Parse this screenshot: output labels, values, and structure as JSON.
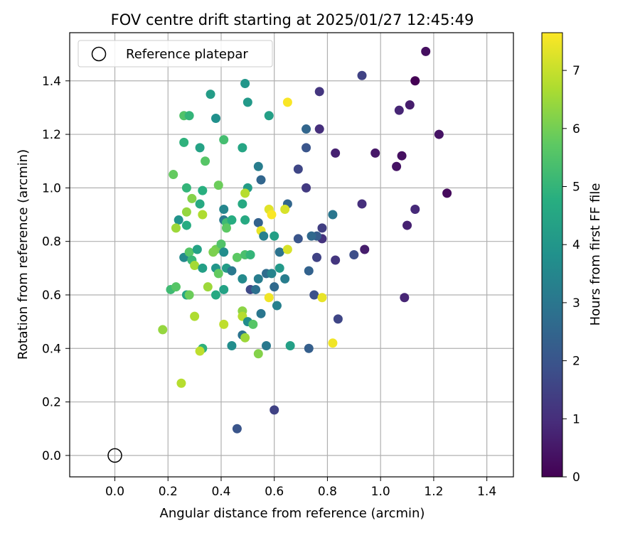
{
  "chart_data": {
    "type": "scatter",
    "title": "FOV centre drift starting at 2025/01/27 12:45:49",
    "xlabel": "Angular distance from reference (arcmin)",
    "ylabel": "Rotation from reference (arcmin)",
    "xlim": [
      -0.17,
      1.5
    ],
    "ylim": [
      -0.08,
      1.58
    ],
    "xticks": [
      0.0,
      0.2,
      0.4,
      0.6,
      0.8,
      1.0,
      1.2,
      1.4
    ],
    "xtick_labels": [
      "0.0",
      "0.2",
      "0.4",
      "0.6",
      "0.8",
      "1.0",
      "1.2",
      "1.4"
    ],
    "yticks": [
      0.0,
      0.2,
      0.4,
      0.6,
      0.8,
      1.0,
      1.2,
      1.4
    ],
    "ytick_labels": [
      "0.0",
      "0.2",
      "0.4",
      "0.6",
      "0.8",
      "1.0",
      "1.2",
      "1.4"
    ],
    "grid": true,
    "legend": {
      "placement": "top-left",
      "entries": [
        "Reference platepar"
      ]
    },
    "reference_point": {
      "x": 0.0,
      "y": 0.0,
      "style": "open-circle"
    },
    "colorbar": {
      "label": "Hours from first FF file",
      "colormap": "viridis",
      "range": [
        0,
        7.65
      ],
      "ticks": [
        0,
        1,
        2,
        3,
        4,
        5,
        6,
        7
      ],
      "tick_labels": [
        "0",
        "1",
        "2",
        "3",
        "4",
        "5",
        "6",
        "7"
      ]
    },
    "series": [
      {
        "color_by": "hours",
        "points": [
          {
            "x": 1.17,
            "y": 1.51,
            "c": 0.3
          },
          {
            "x": 0.93,
            "y": 1.42,
            "c": 1.5
          },
          {
            "x": 1.13,
            "y": 1.4,
            "c": 0.0
          },
          {
            "x": 0.77,
            "y": 1.36,
            "c": 1.2
          },
          {
            "x": 1.11,
            "y": 1.31,
            "c": 0.6
          },
          {
            "x": 1.07,
            "y": 1.29,
            "c": 0.8
          },
          {
            "x": 1.22,
            "y": 1.2,
            "c": 0.4
          },
          {
            "x": 0.77,
            "y": 1.22,
            "c": 1.0
          },
          {
            "x": 0.72,
            "y": 1.22,
            "c": 2.5
          },
          {
            "x": 0.72,
            "y": 1.15,
            "c": 2.0
          },
          {
            "x": 0.83,
            "y": 1.13,
            "c": 0.7
          },
          {
            "x": 0.98,
            "y": 1.13,
            "c": 0.5
          },
          {
            "x": 1.08,
            "y": 1.12,
            "c": 0.3
          },
          {
            "x": 1.06,
            "y": 1.08,
            "c": 0.4
          },
          {
            "x": 0.69,
            "y": 1.07,
            "c": 1.6
          },
          {
            "x": 0.72,
            "y": 1.0,
            "c": 1.3
          },
          {
            "x": 1.25,
            "y": 0.98,
            "c": 0.2
          },
          {
            "x": 0.93,
            "y": 0.94,
            "c": 1.0
          },
          {
            "x": 1.13,
            "y": 0.92,
            "c": 0.9
          },
          {
            "x": 1.1,
            "y": 0.86,
            "c": 0.7
          },
          {
            "x": 0.82,
            "y": 0.9,
            "c": 3.0
          },
          {
            "x": 0.65,
            "y": 0.94,
            "c": 2.5
          },
          {
            "x": 0.78,
            "y": 0.85,
            "c": 1.4
          },
          {
            "x": 0.78,
            "y": 0.81,
            "c": 1.1
          },
          {
            "x": 0.76,
            "y": 0.82,
            "c": 2.2
          },
          {
            "x": 0.74,
            "y": 0.82,
            "c": 2.6
          },
          {
            "x": 0.69,
            "y": 0.81,
            "c": 2.0
          },
          {
            "x": 0.94,
            "y": 0.77,
            "c": 0.6
          },
          {
            "x": 0.9,
            "y": 0.75,
            "c": 1.8
          },
          {
            "x": 0.76,
            "y": 0.74,
            "c": 1.5
          },
          {
            "x": 0.83,
            "y": 0.73,
            "c": 1.2
          },
          {
            "x": 0.73,
            "y": 0.69,
            "c": 2.4
          },
          {
            "x": 1.09,
            "y": 0.59,
            "c": 0.8
          },
          {
            "x": 0.75,
            "y": 0.6,
            "c": 1.9
          },
          {
            "x": 0.84,
            "y": 0.51,
            "c": 1.6
          },
          {
            "x": 0.73,
            "y": 0.4,
            "c": 2.3
          },
          {
            "x": 0.6,
            "y": 0.17,
            "c": 1.5
          },
          {
            "x": 0.46,
            "y": 0.1,
            "c": 2.0
          },
          {
            "x": 0.65,
            "y": 1.32,
            "c": 7.6
          },
          {
            "x": 0.49,
            "y": 1.39,
            "c": 4.0
          },
          {
            "x": 0.36,
            "y": 1.35,
            "c": 4.2
          },
          {
            "x": 0.5,
            "y": 1.32,
            "c": 4.1
          },
          {
            "x": 0.58,
            "y": 1.27,
            "c": 4.3
          },
          {
            "x": 0.26,
            "y": 1.27,
            "c": 5.5
          },
          {
            "x": 0.28,
            "y": 1.27,
            "c": 5.0
          },
          {
            "x": 0.38,
            "y": 1.26,
            "c": 3.8
          },
          {
            "x": 0.26,
            "y": 1.17,
            "c": 4.9
          },
          {
            "x": 0.32,
            "y": 1.15,
            "c": 4.4
          },
          {
            "x": 0.41,
            "y": 1.18,
            "c": 5.3
          },
          {
            "x": 0.48,
            "y": 1.15,
            "c": 4.5
          },
          {
            "x": 0.34,
            "y": 1.1,
            "c": 5.6
          },
          {
            "x": 0.54,
            "y": 1.08,
            "c": 3.2
          },
          {
            "x": 0.22,
            "y": 1.05,
            "c": 5.8
          },
          {
            "x": 0.55,
            "y": 1.03,
            "c": 2.5
          },
          {
            "x": 0.39,
            "y": 1.01,
            "c": 5.9
          },
          {
            "x": 0.27,
            "y": 1.0,
            "c": 5.0
          },
          {
            "x": 0.33,
            "y": 0.99,
            "c": 4.8
          },
          {
            "x": 0.5,
            "y": 1.0,
            "c": 4.2
          },
          {
            "x": 0.49,
            "y": 0.98,
            "c": 6.8
          },
          {
            "x": 0.29,
            "y": 0.96,
            "c": 6.2
          },
          {
            "x": 0.32,
            "y": 0.94,
            "c": 4.6
          },
          {
            "x": 0.48,
            "y": 0.94,
            "c": 4.6
          },
          {
            "x": 0.41,
            "y": 0.92,
            "c": 3.5
          },
          {
            "x": 0.27,
            "y": 0.91,
            "c": 6.4
          },
          {
            "x": 0.58,
            "y": 0.92,
            "c": 7.3
          },
          {
            "x": 0.64,
            "y": 0.92,
            "c": 7.2
          },
          {
            "x": 0.59,
            "y": 0.9,
            "c": 7.6
          },
          {
            "x": 0.33,
            "y": 0.9,
            "c": 6.7
          },
          {
            "x": 0.24,
            "y": 0.88,
            "c": 3.9
          },
          {
            "x": 0.41,
            "y": 0.88,
            "c": 3.1
          },
          {
            "x": 0.42,
            "y": 0.87,
            "c": 5.2
          },
          {
            "x": 0.44,
            "y": 0.88,
            "c": 4.7
          },
          {
            "x": 0.49,
            "y": 0.88,
            "c": 4.6
          },
          {
            "x": 0.54,
            "y": 0.87,
            "c": 2.4
          },
          {
            "x": 0.27,
            "y": 0.86,
            "c": 4.7
          },
          {
            "x": 0.23,
            "y": 0.85,
            "c": 6.5
          },
          {
            "x": 0.42,
            "y": 0.85,
            "c": 5.7
          },
          {
            "x": 0.55,
            "y": 0.84,
            "c": 7.4
          },
          {
            "x": 0.56,
            "y": 0.82,
            "c": 3.3
          },
          {
            "x": 0.6,
            "y": 0.82,
            "c": 4.3
          },
          {
            "x": 0.38,
            "y": 0.77,
            "c": 6.0
          },
          {
            "x": 0.4,
            "y": 0.79,
            "c": 5.5
          },
          {
            "x": 0.26,
            "y": 0.74,
            "c": 3.6
          },
          {
            "x": 0.28,
            "y": 0.76,
            "c": 5.6
          },
          {
            "x": 0.31,
            "y": 0.77,
            "c": 4.4
          },
          {
            "x": 0.37,
            "y": 0.76,
            "c": 6.1
          },
          {
            "x": 0.41,
            "y": 0.76,
            "c": 3.7
          },
          {
            "x": 0.46,
            "y": 0.74,
            "c": 5.7
          },
          {
            "x": 0.49,
            "y": 0.75,
            "c": 5.4
          },
          {
            "x": 0.51,
            "y": 0.75,
            "c": 5.0
          },
          {
            "x": 0.62,
            "y": 0.76,
            "c": 2.9
          },
          {
            "x": 0.65,
            "y": 0.77,
            "c": 7.2
          },
          {
            "x": 0.29,
            "y": 0.73,
            "c": 5.1
          },
          {
            "x": 0.3,
            "y": 0.71,
            "c": 6.6
          },
          {
            "x": 0.33,
            "y": 0.7,
            "c": 4.3
          },
          {
            "x": 0.38,
            "y": 0.7,
            "c": 4.0
          },
          {
            "x": 0.42,
            "y": 0.7,
            "c": 4.2
          },
          {
            "x": 0.44,
            "y": 0.69,
            "c": 3.1
          },
          {
            "x": 0.39,
            "y": 0.68,
            "c": 5.8
          },
          {
            "x": 0.48,
            "y": 0.66,
            "c": 3.6
          },
          {
            "x": 0.57,
            "y": 0.68,
            "c": 2.7
          },
          {
            "x": 0.59,
            "y": 0.68,
            "c": 3.4
          },
          {
            "x": 0.62,
            "y": 0.7,
            "c": 4.1
          },
          {
            "x": 0.54,
            "y": 0.66,
            "c": 3.2
          },
          {
            "x": 0.64,
            "y": 0.66,
            "c": 3.2
          },
          {
            "x": 0.35,
            "y": 0.63,
            "c": 6.5
          },
          {
            "x": 0.51,
            "y": 0.62,
            "c": 1.7
          },
          {
            "x": 0.53,
            "y": 0.62,
            "c": 2.8
          },
          {
            "x": 0.6,
            "y": 0.63,
            "c": 2.6
          },
          {
            "x": 0.21,
            "y": 0.62,
            "c": 5.2
          },
          {
            "x": 0.23,
            "y": 0.63,
            "c": 5.6
          },
          {
            "x": 0.27,
            "y": 0.6,
            "c": 4.5
          },
          {
            "x": 0.28,
            "y": 0.6,
            "c": 5.9
          },
          {
            "x": 0.38,
            "y": 0.6,
            "c": 4.6
          },
          {
            "x": 0.41,
            "y": 0.62,
            "c": 4.4
          },
          {
            "x": 0.58,
            "y": 0.59,
            "c": 7.5
          },
          {
            "x": 0.78,
            "y": 0.59,
            "c": 7.4
          },
          {
            "x": 0.61,
            "y": 0.56,
            "c": 3.3
          },
          {
            "x": 0.48,
            "y": 0.54,
            "c": 6.3
          },
          {
            "x": 0.48,
            "y": 0.52,
            "c": 6.8
          },
          {
            "x": 0.55,
            "y": 0.53,
            "c": 3.0
          },
          {
            "x": 0.3,
            "y": 0.52,
            "c": 6.7
          },
          {
            "x": 0.5,
            "y": 0.5,
            "c": 3.7
          },
          {
            "x": 0.52,
            "y": 0.49,
            "c": 5.6
          },
          {
            "x": 0.41,
            "y": 0.49,
            "c": 6.9
          },
          {
            "x": 0.18,
            "y": 0.47,
            "c": 6.4
          },
          {
            "x": 0.48,
            "y": 0.45,
            "c": 2.9
          },
          {
            "x": 0.49,
            "y": 0.44,
            "c": 6.5
          },
          {
            "x": 0.82,
            "y": 0.42,
            "c": 7.5
          },
          {
            "x": 0.44,
            "y": 0.41,
            "c": 3.7
          },
          {
            "x": 0.57,
            "y": 0.41,
            "c": 3.1
          },
          {
            "x": 0.66,
            "y": 0.41,
            "c": 4.3
          },
          {
            "x": 0.33,
            "y": 0.4,
            "c": 4.9
          },
          {
            "x": 0.32,
            "y": 0.39,
            "c": 6.9
          },
          {
            "x": 0.54,
            "y": 0.38,
            "c": 6.2
          },
          {
            "x": 0.25,
            "y": 0.27,
            "c": 6.8
          }
        ]
      }
    ]
  }
}
